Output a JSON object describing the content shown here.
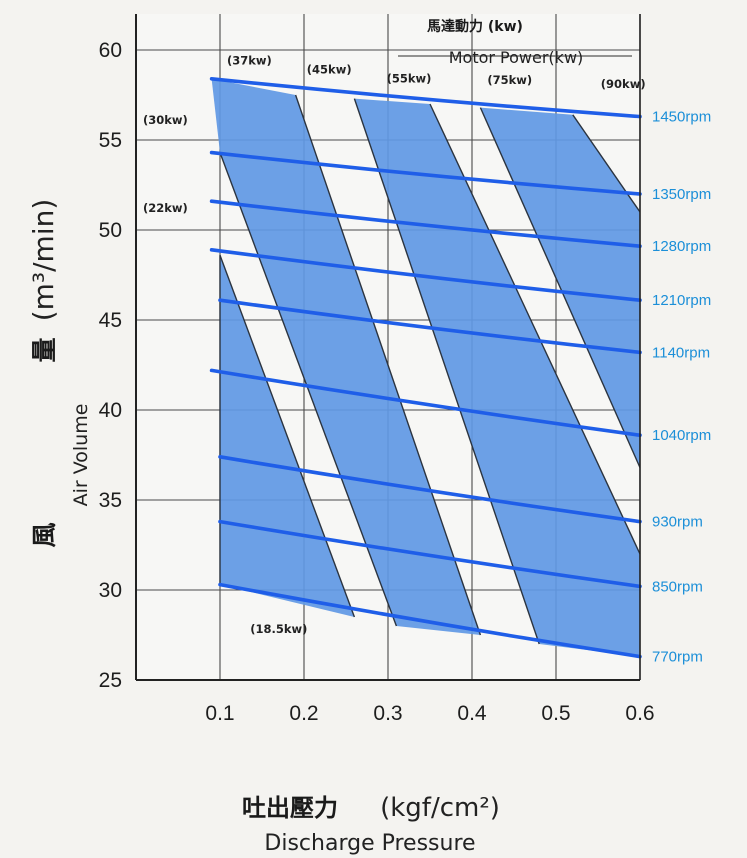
{
  "chart_data": {
    "type": "line",
    "title_zh": "馬達動力 (kw)",
    "title_en": "Motor Power(kw)",
    "xlabel_zh": "吐出壓力",
    "xlabel_unit": "(kgf/cm²)",
    "xlabel_en": "Discharge Pressure",
    "ylabel_zh_1": "風",
    "ylabel_zh_2": "量",
    "ylabel_unit": "(m³/min)",
    "ylabel_en": "Air Volume",
    "xlim": [
      0.0,
      0.6
    ],
    "ylim": [
      25,
      62
    ],
    "x_ticks": [
      "0.1",
      "0.2",
      "0.3",
      "0.4",
      "0.5",
      "0.6"
    ],
    "y_ticks": [
      "25",
      "30",
      "35",
      "40",
      "45",
      "50",
      "55",
      "60"
    ],
    "grid": true,
    "colors": {
      "band": "#5f98e4",
      "speed_line": "#1f5ee8",
      "rpm_text": "#1c8fd8",
      "grid": "#4a4a4a"
    },
    "speed_curves": [
      {
        "name": "770rpm",
        "x": [
          0.1,
          0.6
        ],
        "y": [
          30.3,
          26.3
        ]
      },
      {
        "name": "850rpm",
        "x": [
          0.1,
          0.6
        ],
        "y": [
          33.8,
          30.2
        ]
      },
      {
        "name": "930rpm",
        "x": [
          0.1,
          0.6
        ],
        "y": [
          37.4,
          33.8
        ]
      },
      {
        "name": "1040rpm",
        "x": [
          0.09,
          0.6
        ],
        "y": [
          42.2,
          38.6
        ]
      },
      {
        "name": "1140rpm",
        "x": [
          0.1,
          0.6
        ],
        "y": [
          46.1,
          43.2
        ]
      },
      {
        "name": "1210rpm",
        "x": [
          0.09,
          0.6
        ],
        "y": [
          48.9,
          46.1
        ]
      },
      {
        "name": "1280rpm",
        "x": [
          0.09,
          0.6
        ],
        "y": [
          51.6,
          49.1
        ]
      },
      {
        "name": "1350rpm",
        "x": [
          0.09,
          0.6
        ],
        "y": [
          54.3,
          52.0
        ]
      },
      {
        "name": "1450rpm",
        "x": [
          0.09,
          0.6
        ],
        "y": [
          58.4,
          56.3
        ]
      }
    ],
    "power_lines": [
      {
        "x": [
          0.1,
          0.26
        ],
        "y": [
          48.6,
          28.5
        ]
      },
      {
        "x": [
          0.1,
          0.31
        ],
        "y": [
          54.3,
          28.0
        ]
      },
      {
        "x": [
          0.19,
          0.41
        ],
        "y": [
          57.5,
          27.5
        ]
      },
      {
        "x": [
          0.26,
          0.48
        ],
        "y": [
          57.3,
          27.0
        ]
      },
      {
        "x": [
          0.35,
          0.6
        ],
        "y": [
          57.0,
          32.0
        ]
      },
      {
        "x": [
          0.41,
          0.6
        ],
        "y": [
          56.8,
          36.8
        ]
      },
      {
        "x": [
          0.52,
          0.6
        ],
        "y": [
          56.4,
          51.0
        ]
      }
    ],
    "power_bands": [
      {
        "x": [
          0.1,
          0.1,
          0.26,
          0.1
        ],
        "y": [
          48.6,
          30.3,
          28.5,
          48.6
        ]
      },
      {
        "x": [
          0.09,
          0.19,
          0.41,
          0.31,
          0.1
        ],
        "y": [
          58.4,
          57.5,
          27.5,
          28.0,
          54.3
        ]
      },
      {
        "x": [
          0.26,
          0.35,
          0.6,
          0.6,
          0.48
        ],
        "y": [
          57.3,
          57.0,
          32.0,
          26.3,
          27.0
        ]
      },
      {
        "x": [
          0.41,
          0.52,
          0.6,
          0.6
        ],
        "y": [
          56.8,
          56.4,
          51.0,
          36.8
        ]
      }
    ],
    "power_labels": [
      {
        "text": "(18.5kw)",
        "x": 0.17,
        "y": 27.6
      },
      {
        "text": "(22kw)",
        "x": 0.035,
        "y": 51.0
      },
      {
        "text": "(30kw)",
        "x": 0.035,
        "y": 55.9
      },
      {
        "text": "(37kw)",
        "x": 0.135,
        "y": 59.2
      },
      {
        "text": "(45kw)",
        "x": 0.23,
        "y": 58.7
      },
      {
        "text": "(55kw)",
        "x": 0.325,
        "y": 58.2
      },
      {
        "text": "(75kw)",
        "x": 0.445,
        "y": 58.1
      },
      {
        "text": "(90kw)",
        "x": 0.58,
        "y": 57.9
      }
    ]
  }
}
